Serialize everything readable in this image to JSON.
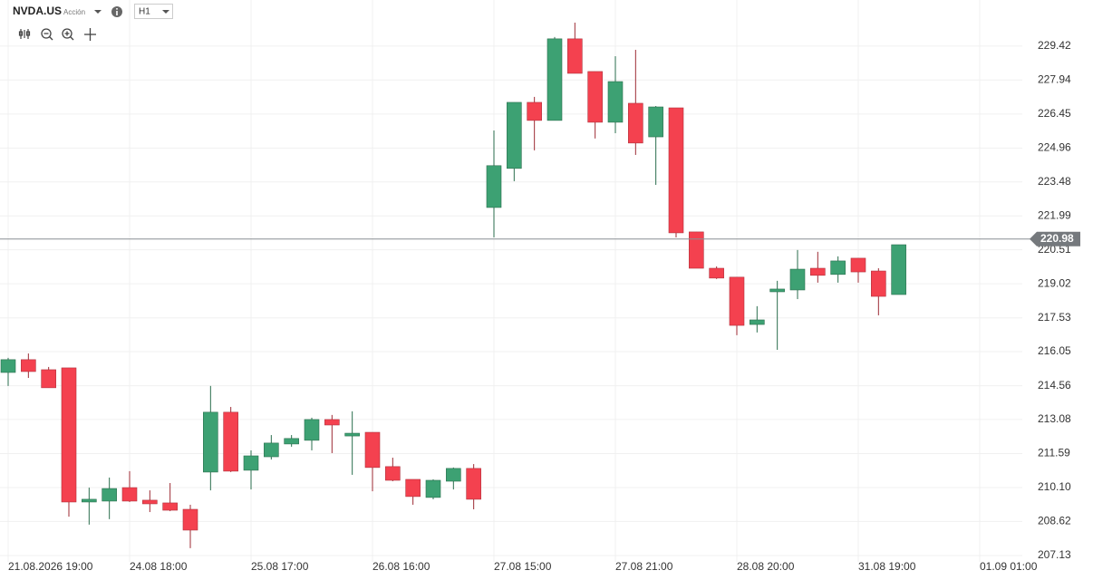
{
  "header": {
    "symbol": "NVDA.US",
    "asset_type": "Acción",
    "timeframe": "H1"
  },
  "chart_data": {
    "type": "candlestick",
    "categories": [
      "21.08.2026 19:00",
      null,
      null,
      null,
      null,
      null,
      "24.08 18:00",
      null,
      null,
      null,
      null,
      null,
      "25.08 17:00",
      null,
      null,
      null,
      null,
      null,
      "26.08 16:00",
      null,
      null,
      null,
      null,
      null,
      "27.08 15:00",
      null,
      null,
      null,
      null,
      null,
      "27.08 21:00",
      null,
      null,
      null,
      null,
      null,
      "28.08 20:00",
      null,
      null,
      null,
      null,
      null,
      "31.08 19:00",
      null,
      null,
      null,
      null,
      null,
      "01.09 01:00"
    ],
    "open": [
      215.14,
      215.7,
      215.26,
      215.34,
      209.47,
      209.51,
      210.1,
      209.55,
      209.43,
      209.15,
      210.78,
      213.4,
      210.86,
      211.45,
      212.01,
      212.17,
      213.08,
      212.36,
      212.52,
      211.02,
      210.46,
      209.67,
      210.38,
      210.94,
      222.36,
      224.07,
      226.96,
      226.17,
      229.74,
      228.31,
      226.09,
      226.92,
      225.45,
      226.72,
      221.29,
      219.7,
      219.31,
      217.24,
      218.67,
      218.75,
      219.7,
      219.43,
      220.14,
      219.58,
      218.55,
      null,
      null,
      null,
      null
    ],
    "high": [
      215.78,
      215.97,
      215.38,
      215.34,
      210.1,
      210.54,
      210.82,
      209.98,
      210.3,
      209.35,
      214.55,
      213.63,
      211.73,
      212.4,
      212.4,
      213.16,
      213.28,
      213.44,
      212.52,
      211.41,
      210.46,
      210.46,
      210.98,
      211.13,
      225.73,
      226.96,
      227.2,
      229.82,
      230.45,
      228.31,
      228.98,
      229.26,
      226.8,
      226.72,
      221.29,
      219.78,
      219.31,
      218.04,
      219.15,
      220.5,
      220.42,
      220.22,
      220.14,
      219.7,
      220.73,
      null,
      null,
      null,
      null
    ],
    "low": [
      214.55,
      214.9,
      214.47,
      208.83,
      208.48,
      208.72,
      209.47,
      209.03,
      209.07,
      207.45,
      209.98,
      210.78,
      210.02,
      211.33,
      211.89,
      211.73,
      211.61,
      210.66,
      209.94,
      210.38,
      209.35,
      209.59,
      210.02,
      209.15,
      221.05,
      223.51,
      224.86,
      226.17,
      228.23,
      225.38,
      225.61,
      224.66,
      223.35,
      221.05,
      219.7,
      219.23,
      216.77,
      216.89,
      216.13,
      218.35,
      219.07,
      219.07,
      219.07,
      217.64,
      218.55,
      null,
      null,
      null,
      null
    ],
    "close": [
      215.7,
      215.18,
      214.47,
      209.47,
      209.59,
      210.06,
      209.51,
      209.39,
      209.11,
      208.24,
      213.4,
      210.82,
      211.49,
      212.05,
      212.25,
      213.08,
      212.84,
      212.48,
      210.98,
      210.42,
      209.71,
      210.42,
      210.94,
      209.59,
      224.19,
      226.96,
      226.17,
      229.74,
      228.23,
      226.09,
      227.87,
      225.18,
      226.76,
      221.25,
      219.7,
      219.27,
      217.2,
      217.44,
      218.79,
      219.66,
      219.39,
      220.02,
      219.54,
      218.47,
      220.73,
      null,
      null,
      null,
      null
    ],
    "up_color": "#3da173",
    "down_color": "#f4414f",
    "last_price": 220.98,
    "ylim": [
      206.85,
      231.44
    ],
    "yticks": [
      207.13,
      208.62,
      {
        "value": 210.1,
        "label": "210.10"
      },
      211.59,
      213.08,
      214.56,
      216.05,
      217.53,
      219.02,
      220.51,
      221.99,
      223.48,
      224.96,
      226.45,
      227.94,
      229.42
    ],
    "grid": true
  }
}
